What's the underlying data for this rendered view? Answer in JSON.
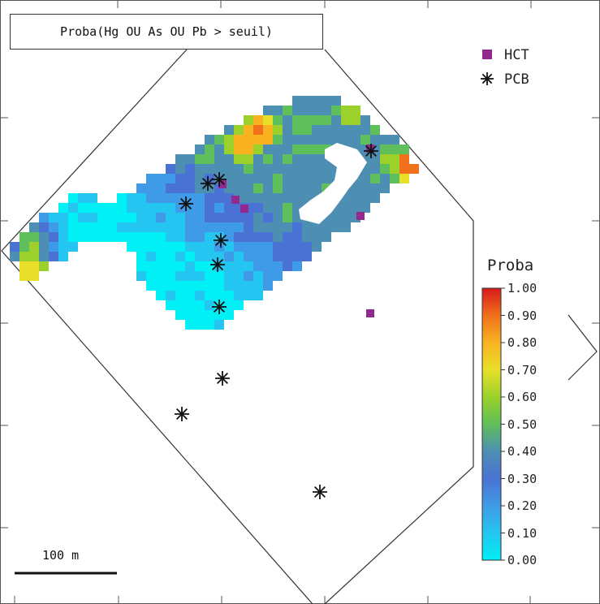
{
  "map": {
    "title": "Proba(Hg OU As OU Pb > seuil)",
    "scale_label": "100 m",
    "legend": [
      {
        "label": "HCT",
        "symbol": "square",
        "color": "#93288f"
      },
      {
        "label": "PCB",
        "symbol": "asterisk",
        "color": "#111111"
      }
    ],
    "colorbar": {
      "title": "Proba",
      "ticks": [
        "1.00",
        "0.90",
        "0.80",
        "0.70",
        "0.60",
        "0.50",
        "0.40",
        "0.30",
        "0.20",
        "0.10",
        "0.00"
      ],
      "stops": [
        "#d7191c",
        "#f0701c",
        "#f9b321",
        "#e8df2a",
        "#9bd12a",
        "#5fbf5a",
        "#4d8fb3",
        "#4a72d4",
        "#3f9be8",
        "#24c5f0",
        "#00f0f5"
      ]
    }
  }
}
